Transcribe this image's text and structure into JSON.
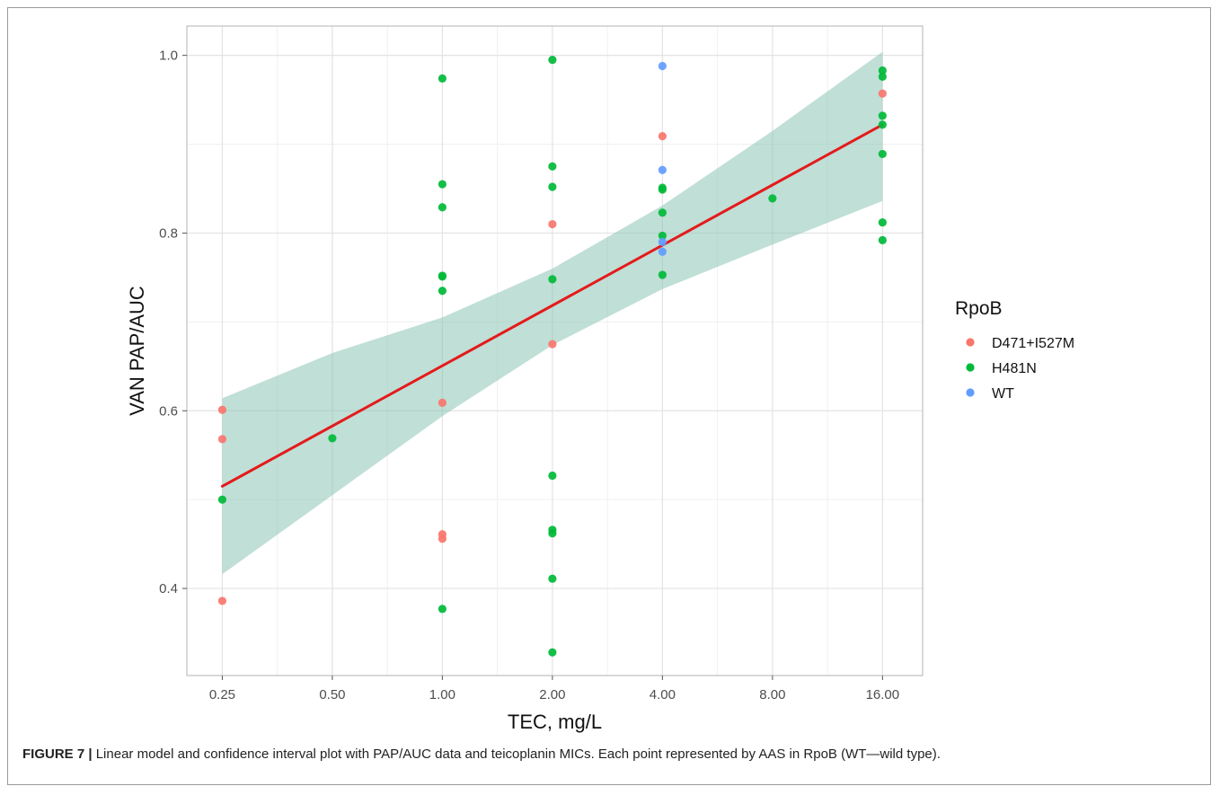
{
  "caption": {
    "lead": "FIGURE 7 |",
    "text": " Linear model and confidence interval plot with PAP/AUC data and teicoplanin MICs. Each point represented by AAS in RpoB (WT—wild type)."
  },
  "chart_data": {
    "type": "scatter",
    "xlabel": "TEC, mg/L",
    "ylabel": "VAN PAP/AUC",
    "x_scale": "log2",
    "x_ticks": [
      0.25,
      0.5,
      1,
      2,
      4,
      8,
      16
    ],
    "x_tick_labels": [
      "0.25",
      "0.50",
      "1.00",
      "2.00",
      "4.00",
      "8.00",
      "16.00"
    ],
    "xlim": [
      0.2,
      20.6
    ],
    "y_ticks": [
      0.4,
      0.6,
      0.8,
      1.0
    ],
    "y_tick_labels": [
      "0.4",
      "0.6",
      "0.8",
      "1.0"
    ],
    "ylim": [
      0.302,
      1.033
    ],
    "grid": true,
    "legend": {
      "title": "RpoB",
      "placement": "right"
    },
    "series": [
      {
        "name": "D471+I527M",
        "color": "#F8766D",
        "points": [
          [
            0.25,
            0.601
          ],
          [
            0.25,
            0.568
          ],
          [
            0.25,
            0.386
          ],
          [
            1,
            0.609
          ],
          [
            1,
            0.461
          ],
          [
            1,
            0.456
          ],
          [
            2,
            0.81
          ],
          [
            2,
            0.675
          ],
          [
            4,
            0.909
          ],
          [
            16,
            0.957
          ]
        ]
      },
      {
        "name": "H481N",
        "color": "#00BA38",
        "points": [
          [
            0.25,
            0.5
          ],
          [
            0.5,
            0.569
          ],
          [
            1,
            0.974
          ],
          [
            1,
            0.855
          ],
          [
            1,
            0.829
          ],
          [
            1,
            0.752
          ],
          [
            1,
            0.751
          ],
          [
            1,
            0.735
          ],
          [
            1,
            0.377
          ],
          [
            2,
            0.995
          ],
          [
            2,
            0.875
          ],
          [
            2,
            0.852
          ],
          [
            2,
            0.748
          ],
          [
            2,
            0.527
          ],
          [
            2,
            0.466
          ],
          [
            2,
            0.462
          ],
          [
            2,
            0.411
          ],
          [
            2,
            0.328
          ],
          [
            4,
            0.851
          ],
          [
            4,
            0.849
          ],
          [
            4,
            0.823
          ],
          [
            4,
            0.797
          ],
          [
            4,
            0.753
          ],
          [
            8,
            0.839
          ],
          [
            16,
            0.983
          ],
          [
            16,
            0.976
          ],
          [
            16,
            0.932
          ],
          [
            16,
            0.922
          ],
          [
            16,
            0.889
          ],
          [
            16,
            0.812
          ],
          [
            16,
            0.792
          ]
        ]
      },
      {
        "name": "WT",
        "color": "#619CFF",
        "points": [
          [
            4,
            0.988
          ],
          [
            4,
            0.871
          ],
          [
            4,
            0.79
          ],
          [
            4,
            0.779
          ]
        ]
      }
    ],
    "fit": {
      "type": "linear",
      "color": "#E41A1C",
      "line": [
        [
          0.25,
          0.515
        ],
        [
          16,
          0.922
        ]
      ],
      "ci_color": "#8CC5B4",
      "ci_upper": [
        [
          0.25,
          0.614
        ],
        [
          0.5,
          0.665
        ],
        [
          1,
          0.705
        ],
        [
          2,
          0.76
        ],
        [
          4,
          0.831
        ],
        [
          8,
          0.915
        ],
        [
          16,
          1.004
        ]
      ],
      "ci_lower": [
        [
          0.25,
          0.416
        ],
        [
          0.5,
          0.505
        ],
        [
          1,
          0.594
        ],
        [
          2,
          0.674
        ],
        [
          4,
          0.737
        ],
        [
          8,
          0.787
        ],
        [
          16,
          0.836
        ]
      ]
    }
  }
}
